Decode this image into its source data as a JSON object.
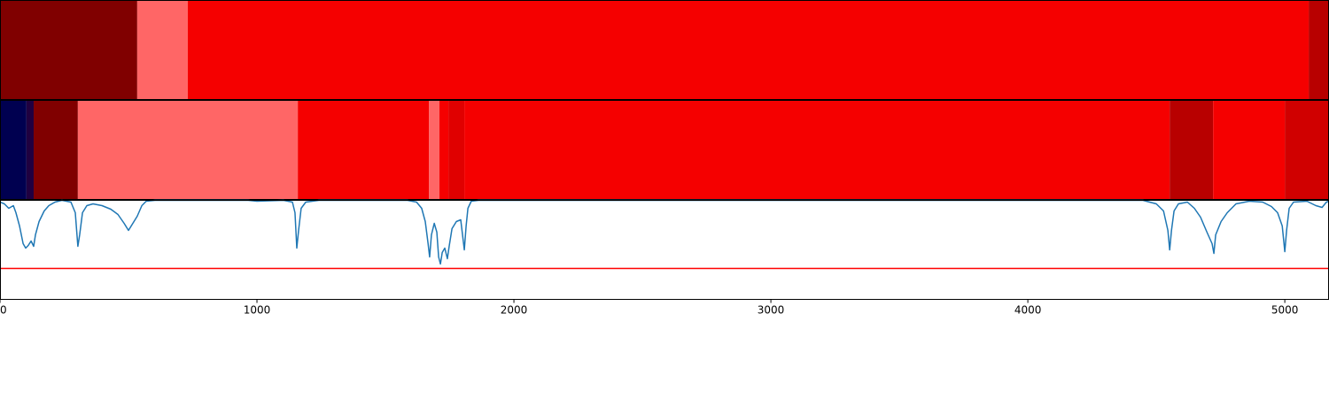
{
  "chart_data": [
    {
      "type": "segments",
      "xlim": [
        0,
        5172
      ],
      "segments": [
        {
          "start": 0,
          "end": 534,
          "color": "#800000"
        },
        {
          "start": 534,
          "end": 731,
          "color": "#ff6666"
        },
        {
          "start": 731,
          "end": 5093,
          "color": "#f50000"
        },
        {
          "start": 5093,
          "end": 5172,
          "color": "#b80000"
        }
      ]
    },
    {
      "type": "segments",
      "xlim": [
        0,
        5172
      ],
      "segments": [
        {
          "start": 0,
          "end": 103,
          "color": "#000050"
        },
        {
          "start": 103,
          "end": 131,
          "color": "#200040"
        },
        {
          "start": 131,
          "end": 303,
          "color": "#800000"
        },
        {
          "start": 303,
          "end": 1159,
          "color": "#ff6666"
        },
        {
          "start": 1159,
          "end": 1669,
          "color": "#f50000"
        },
        {
          "start": 1669,
          "end": 1710,
          "color": "#ff6666"
        },
        {
          "start": 1710,
          "end": 1745,
          "color": "#f50000"
        },
        {
          "start": 1745,
          "end": 1807,
          "color": "#e00000"
        },
        {
          "start": 1807,
          "end": 4552,
          "color": "#f50000"
        },
        {
          "start": 4552,
          "end": 4721,
          "color": "#b80000"
        },
        {
          "start": 4721,
          "end": 5000,
          "color": "#f50000"
        },
        {
          "start": 5000,
          "end": 5172,
          "color": "#d00000"
        }
      ]
    },
    {
      "type": "line",
      "xlim": [
        0,
        5172
      ],
      "ylim": [
        0,
        112
      ],
      "xticks": [
        0,
        1000,
        2000,
        3000,
        4000,
        5000
      ],
      "color": "#1f77b4",
      "x": [
        0,
        17,
        34,
        52,
        62,
        76,
        90,
        100,
        110,
        121,
        131,
        138,
        152,
        172,
        190,
        214,
        241,
        276,
        293,
        303,
        310,
        321,
        338,
        362,
        397,
        431,
        459,
        483,
        500,
        517,
        534,
        552,
        569,
        603,
        966,
        1000,
        1103,
        1138,
        1148,
        1155,
        1162,
        1172,
        1190,
        1241,
        1586,
        1621,
        1641,
        1655,
        1666,
        1672,
        1679,
        1690,
        1700,
        1707,
        1714,
        1721,
        1731,
        1741,
        1748,
        1759,
        1776,
        1793,
        1800,
        1807,
        1814,
        1821,
        1834,
        1862,
        4448,
        4500,
        4528,
        4545,
        4552,
        4559,
        4569,
        4586,
        4621,
        4648,
        4672,
        4697,
        4717,
        4724,
        4731,
        4752,
        4776,
        4810,
        4862,
        4914,
        4948,
        4972,
        4990,
        5000,
        5007,
        5017,
        5034,
        5086,
        5121,
        5145,
        5162,
        5172
      ],
      "values": [
        110,
        108,
        103,
        106,
        98,
        83,
        63,
        58,
        61,
        66,
        60,
        73,
        88,
        100,
        106,
        110,
        112,
        110,
        98,
        60,
        73,
        98,
        106,
        108,
        106,
        102,
        96,
        86,
        78,
        86,
        94,
        106,
        111,
        112,
        112,
        111,
        112,
        110,
        98,
        58,
        78,
        103,
        110,
        112,
        112,
        110,
        103,
        88,
        63,
        48,
        73,
        86,
        76,
        48,
        40,
        53,
        58,
        46,
        60,
        80,
        88,
        90,
        73,
        56,
        83,
        103,
        111,
        112,
        112,
        108,
        100,
        78,
        56,
        78,
        100,
        108,
        110,
        103,
        93,
        76,
        63,
        52,
        73,
        88,
        98,
        108,
        111,
        110,
        105,
        98,
        83,
        54,
        78,
        103,
        110,
        111,
        106,
        104,
        110,
        111
      ],
      "hline": {
        "value": 35,
        "color": "#ff0000"
      }
    }
  ]
}
